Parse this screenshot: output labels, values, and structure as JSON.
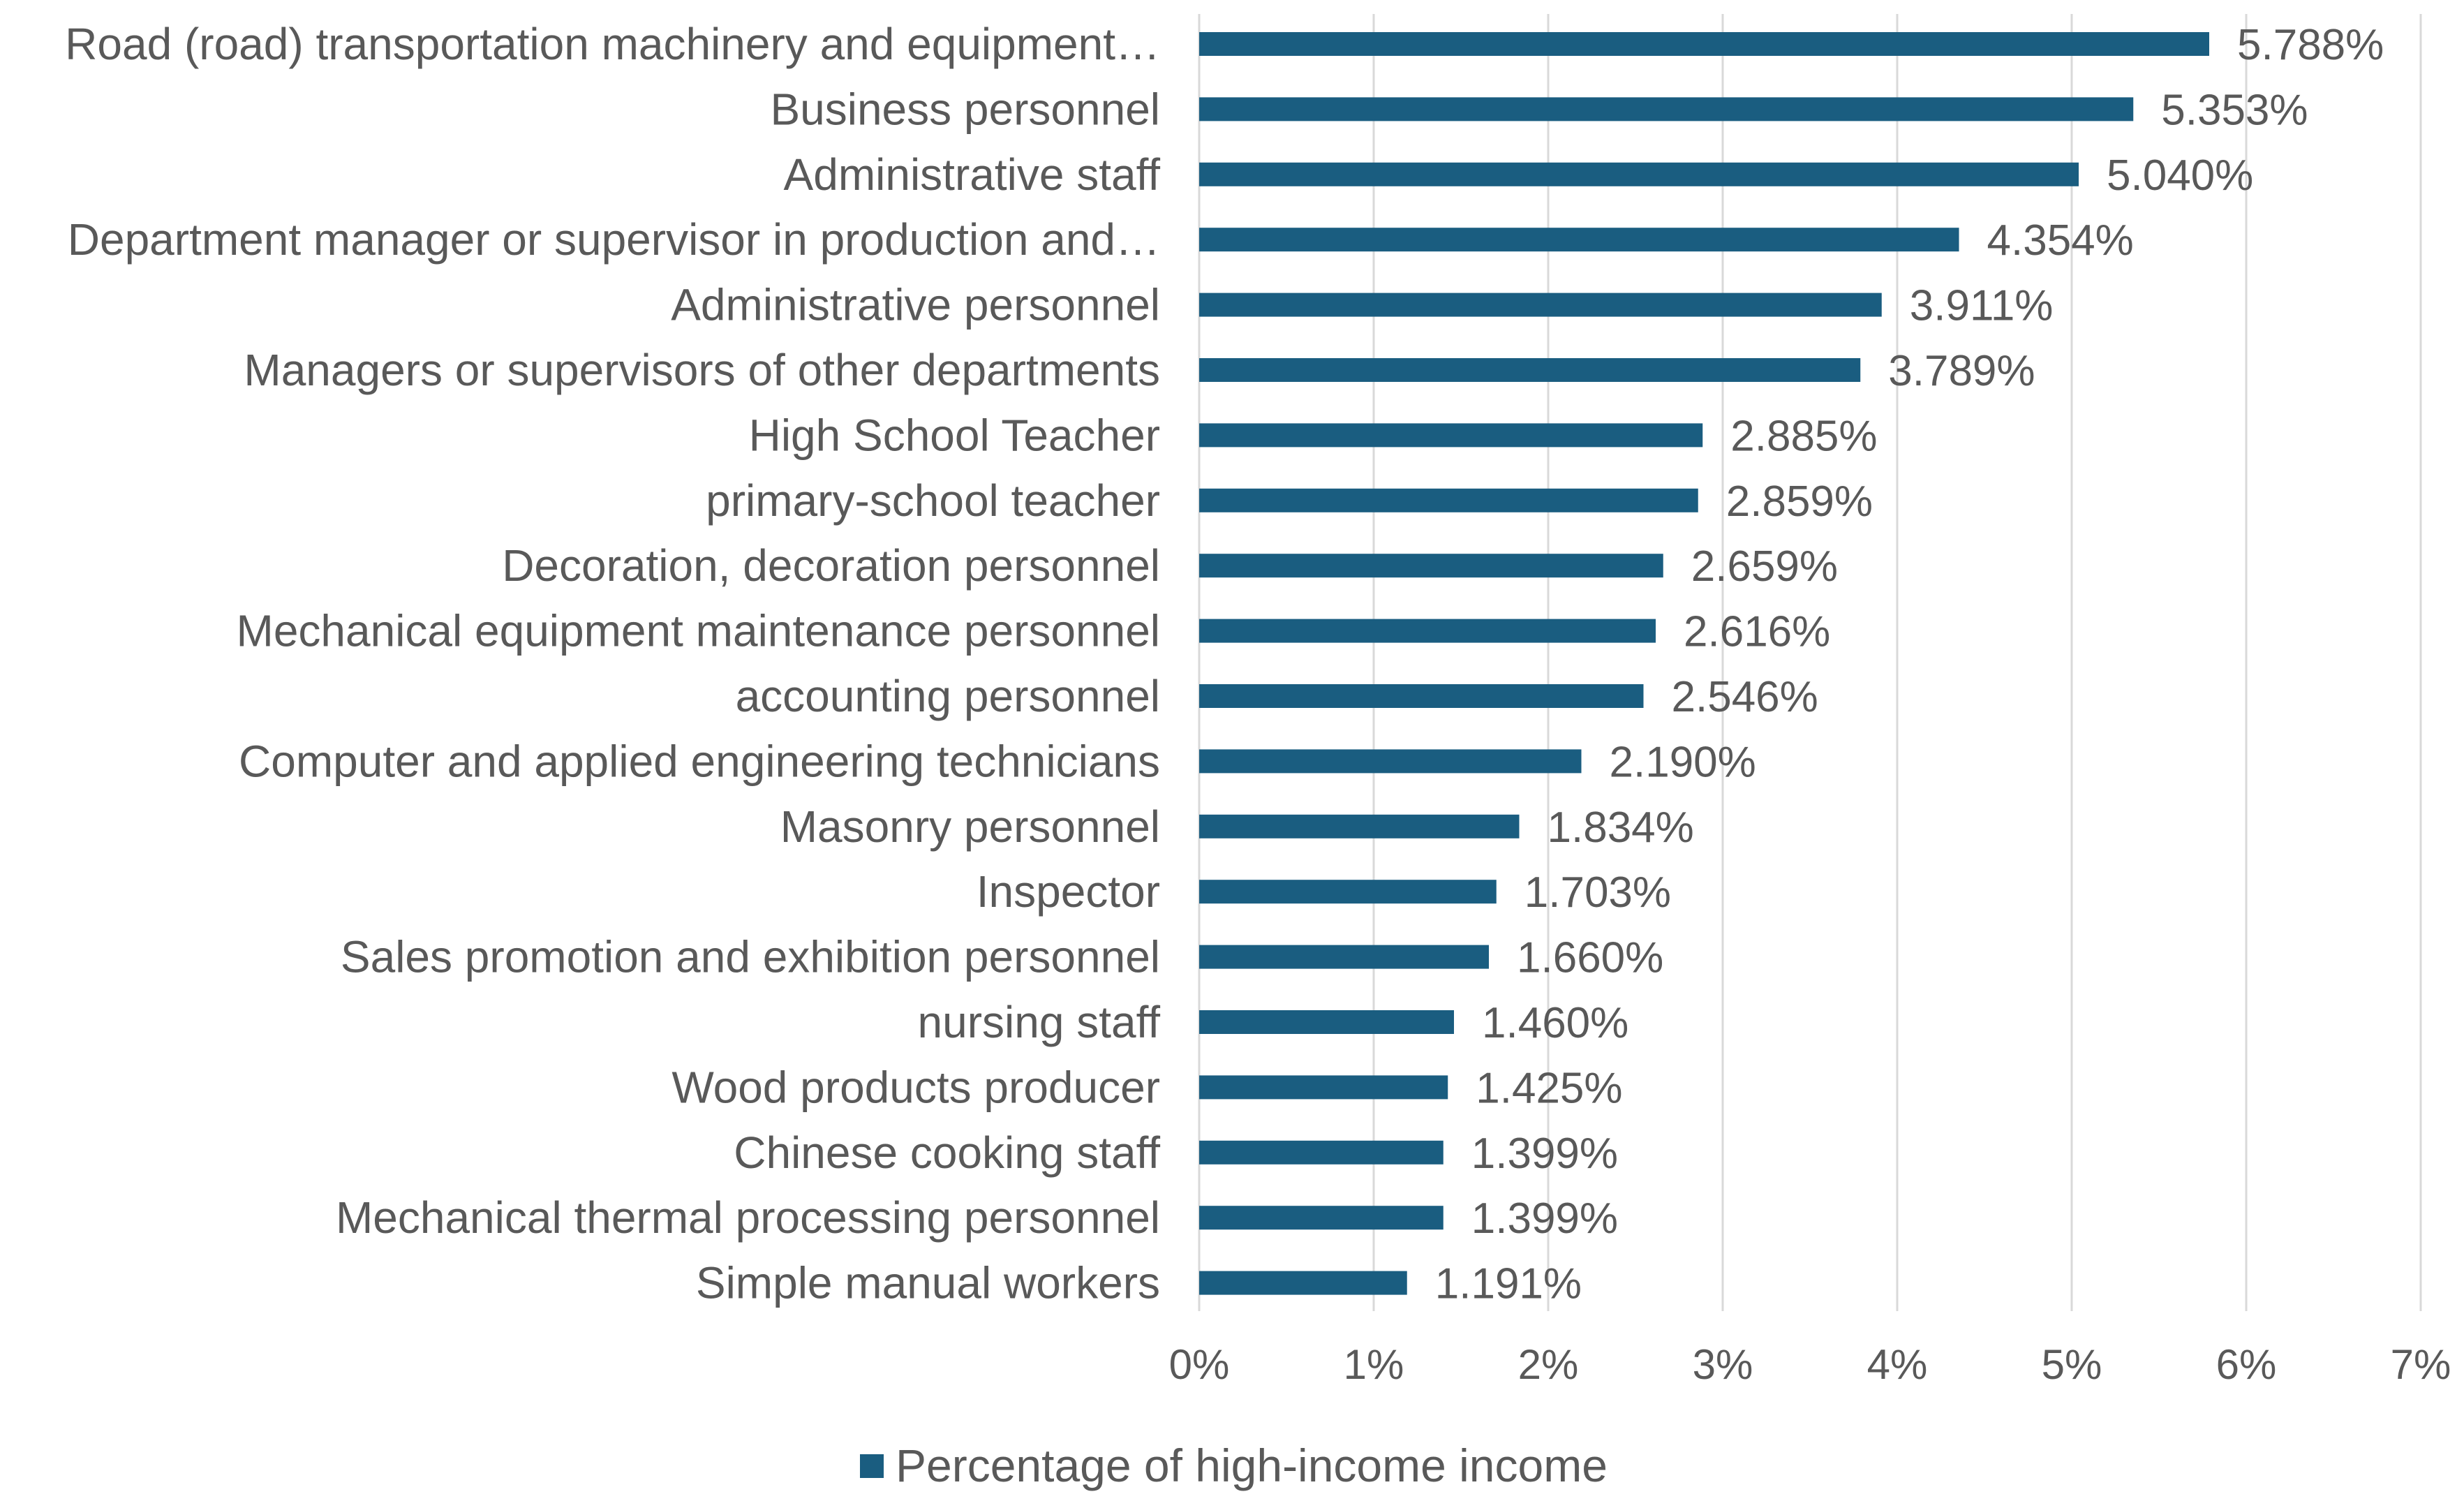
{
  "chart_data": {
    "type": "bar",
    "orientation": "horizontal",
    "categories": [
      "Road (road) transportation machinery and equipment…",
      "Business personnel",
      "Administrative staff",
      "Department manager or supervisor in production and…",
      "Administrative personnel",
      "Managers or supervisors of other departments",
      "High School Teacher",
      "primary-school teacher",
      "Decoration, decoration personnel",
      "Mechanical equipment maintenance personnel",
      "accounting personnel",
      "Computer and applied engineering technicians",
      "Masonry personnel",
      "Inspector",
      "Sales promotion and exhibition personnel",
      "nursing staff",
      "Wood products producer",
      "Chinese cooking staff",
      "Mechanical thermal processing personnel",
      "Simple manual workers"
    ],
    "series": [
      {
        "name": "Percentage of high-income income",
        "values": [
          5.788,
          5.353,
          5.04,
          4.354,
          3.911,
          3.789,
          2.885,
          2.859,
          2.659,
          2.616,
          2.546,
          2.19,
          1.834,
          1.703,
          1.66,
          1.46,
          1.425,
          1.399,
          1.399,
          1.191
        ],
        "value_labels": [
          "5.788%",
          "5.353%",
          "5.040%",
          "4.354%",
          "3.911%",
          "3.789%",
          "2.885%",
          "2.859%",
          "2.659%",
          "2.616%",
          "2.546%",
          "2.190%",
          "1.834%",
          "1.703%",
          "1.660%",
          "1.460%",
          "1.425%",
          "1.399%",
          "1.399%",
          "1.191%"
        ]
      }
    ],
    "x_ticks": [
      "0%",
      "1%",
      "2%",
      "3%",
      "4%",
      "5%",
      "6%",
      "7%"
    ],
    "xlim": [
      0,
      7
    ],
    "title": "",
    "xlabel": "",
    "ylabel": "",
    "grid": true,
    "legend": {
      "position": "bottom",
      "entries": [
        "Percentage of high-income income"
      ]
    },
    "colors": {
      "bar": "#1a5d80",
      "grid": "#d9d9d9",
      "text": "#595959",
      "axis": "#bfbfbf"
    }
  }
}
